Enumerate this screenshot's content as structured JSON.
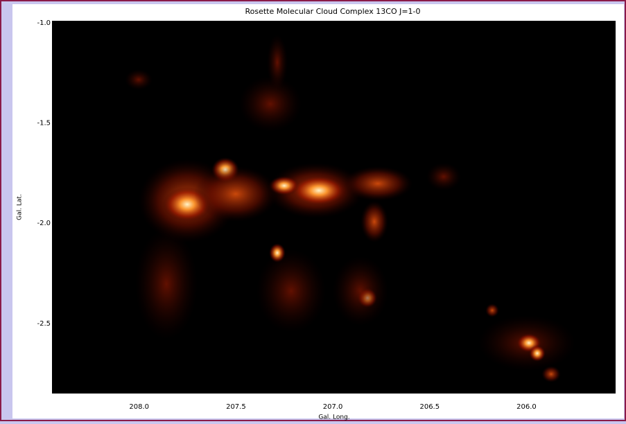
{
  "chart_data": {
    "type": "image",
    "title": "Rosette Molecular Cloud Complex  13CO J=1-0",
    "x_label": "Gal. Long.",
    "y_label": "Gal. Lat.",
    "xlim": [
      208.45,
      205.54
    ],
    "ylim": [
      -2.85,
      -0.99
    ],
    "xticks": [
      {
        "value": 208.0,
        "label": "208.0"
      },
      207.5,
      {
        "value": 207.0,
        "label": "207.0"
      },
      206.5,
      {
        "value": 206.0,
        "label": "206.0"
      }
    ],
    "yticks": [
      {
        "value": -1.0,
        "label": "-1.0"
      },
      -1.5,
      {
        "value": -2.0,
        "label": "-2.0"
      },
      -2.5
    ],
    "color": "#000000"
  }
}
